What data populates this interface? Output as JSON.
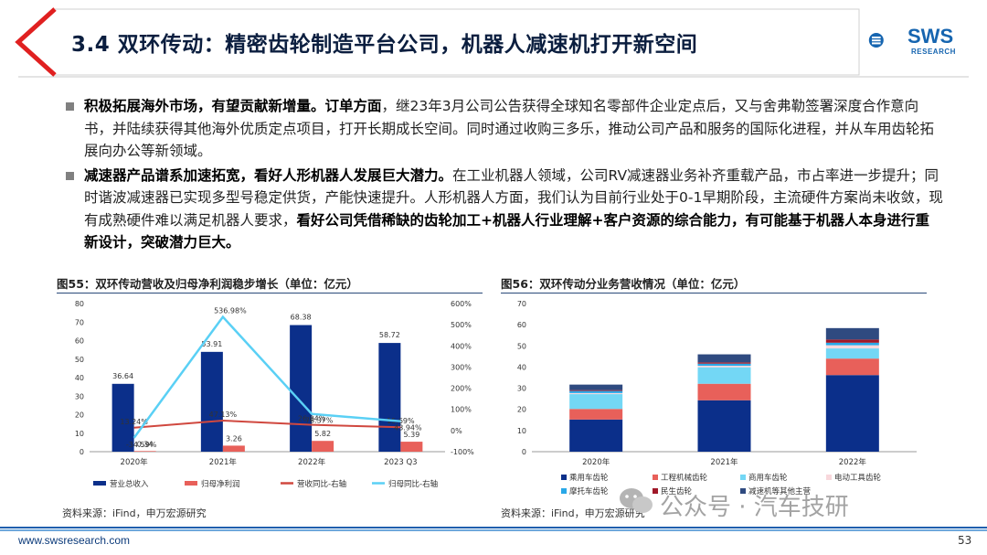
{
  "header": {
    "title": "3.4 双环传动：精密齿轮制造平台公司，机器人减速机打开新空间",
    "logo_text": "SWS",
    "logo_sub": "RESEARCH"
  },
  "bullets": [
    {
      "bold1": "积极拓展海外市场，有望贡献新增量。订单方面",
      "text1": "，继23年3月公司公告获得全球知名零部件企业定点后，又与舍弗勒签署深度合作意向书，并陆续获得其他海外优质定点项目，打开长期成长空间。同时通过收购三多乐，推动公司产品和服务的国际化进程，并从车用齿轮拓展向办公等新领域。"
    },
    {
      "bold1": "减速器产品谱系加速拓宽，看好人形机器人发展巨大潜力。",
      "text1": "在工业机器人领域，公司RV减速器业务补齐重载产品，市占率进一步提升；同时谐波减速器已实现多型号稳定供货，产能快速提升。人形机器人方面，我们认为目前行业处于0-1早期阶段，主流硬件方案尚未收敛，现有成熟硬件难以满足机器人要求，",
      "bold2": "看好公司凭借稀缺的齿轮加工+机器人行业理解+客户资源的综合能力，有可能基于机器人本身进行重新设计，突破潜力巨大。"
    }
  ],
  "figures": {
    "fig55_title": "图55：双环传动营收及归母净利润稳步增长（单位：亿元）",
    "fig56_title": "图56：双环传动分业务营收情况（单位：亿元）",
    "source_left": "资料来源：iFind，申万宏源研究",
    "source_right": "资料来源：iFind，申万宏源研究"
  },
  "footer": {
    "url": "www.swsresearch.com",
    "page": "53"
  },
  "watermark": "公众号 · 汽车技研",
  "colors": {
    "navy": "#0b2f8a",
    "salmon": "#e8605a",
    "red_line": "#c8403a",
    "cyan_line": "#5ad0f5",
    "header_red": "#e02020",
    "footer_blue": "#1f5fae"
  },
  "chart_data": [
    {
      "type": "bar",
      "categories": [
        "2020年",
        "2021年",
        "2022年",
        "2023 Q3"
      ],
      "series": [
        {
          "name": "营业总收入",
          "kind": "bar",
          "axis": "left",
          "values": [
            36.64,
            53.91,
            68.38,
            58.72
          ],
          "labels": [
            "36.64",
            "53.91",
            "68.38",
            "58.72"
          ],
          "color": "#0b2f8a"
        },
        {
          "name": "归母净利润",
          "kind": "bar",
          "axis": "left",
          "values": [
            0.34,
            3.26,
            5.82,
            5.39
          ],
          "labels": [
            "0.34",
            "3.26",
            "5.82",
            "5.39"
          ],
          "color": "#e8605a"
        },
        {
          "name": "营收同比-右轴",
          "kind": "line",
          "axis": "right",
          "values": [
            13.24,
            47.13,
            26.84,
            15.69
          ],
          "labels": [
            "13.24%",
            "47.13%",
            "26.84%",
            "15.69%"
          ],
          "color": "#d0483f"
        },
        {
          "name": "归母同比-右轴",
          "kind": "line",
          "axis": "right",
          "values": [
            -34.59,
            536.98,
            78.37,
            43.94
          ],
          "labels": [
            "-34.59%",
            "536.98%",
            "78.37%",
            "43.94%"
          ],
          "color": "#5ad0f5"
        }
      ],
      "ylim": [
        0,
        80
      ],
      "yticks": [
        "0",
        "10",
        "20",
        "30",
        "40",
        "50",
        "60",
        "70",
        "80"
      ],
      "y2lim": [
        -100,
        600
      ],
      "y2ticks": [
        "-100%",
        "0%",
        "100%",
        "200%",
        "300%",
        "400%",
        "500%",
        "600%"
      ],
      "legend_position": "bottom"
    },
    {
      "type": "bar",
      "stacked": true,
      "categories": [
        "2020年",
        "2021年",
        "2022年"
      ],
      "series": [
        {
          "name": "乘用车齿轮",
          "values": [
            15.2,
            24.3,
            36.2
          ],
          "color": "#0b2f8a"
        },
        {
          "name": "工程机械齿轮",
          "values": [
            5.0,
            7.8,
            7.8
          ],
          "color": "#e8605a"
        },
        {
          "name": "商用车齿轮",
          "values": [
            7.0,
            7.8,
            4.8
          ],
          "color": "#73d7f5"
        },
        {
          "name": "电动工具齿轮",
          "values": [
            0.5,
            0.7,
            1.5
          ],
          "color": "#f8d8dc"
        },
        {
          "name": "摩托车齿轮",
          "values": [
            1.0,
            1.0,
            1.2
          ],
          "color": "#29a8e8"
        },
        {
          "name": "民生齿轮",
          "values": [
            0.4,
            0.6,
            1.5
          ],
          "color": "#a01828"
        },
        {
          "name": "减速机等其他主营",
          "values": [
            2.6,
            3.8,
            5.4
          ],
          "color": "#2f4a80"
        }
      ],
      "ylim": [
        0,
        70
      ],
      "yticks": [
        "0",
        "10",
        "20",
        "30",
        "40",
        "50",
        "60",
        "70"
      ],
      "legend_position": "bottom"
    }
  ]
}
